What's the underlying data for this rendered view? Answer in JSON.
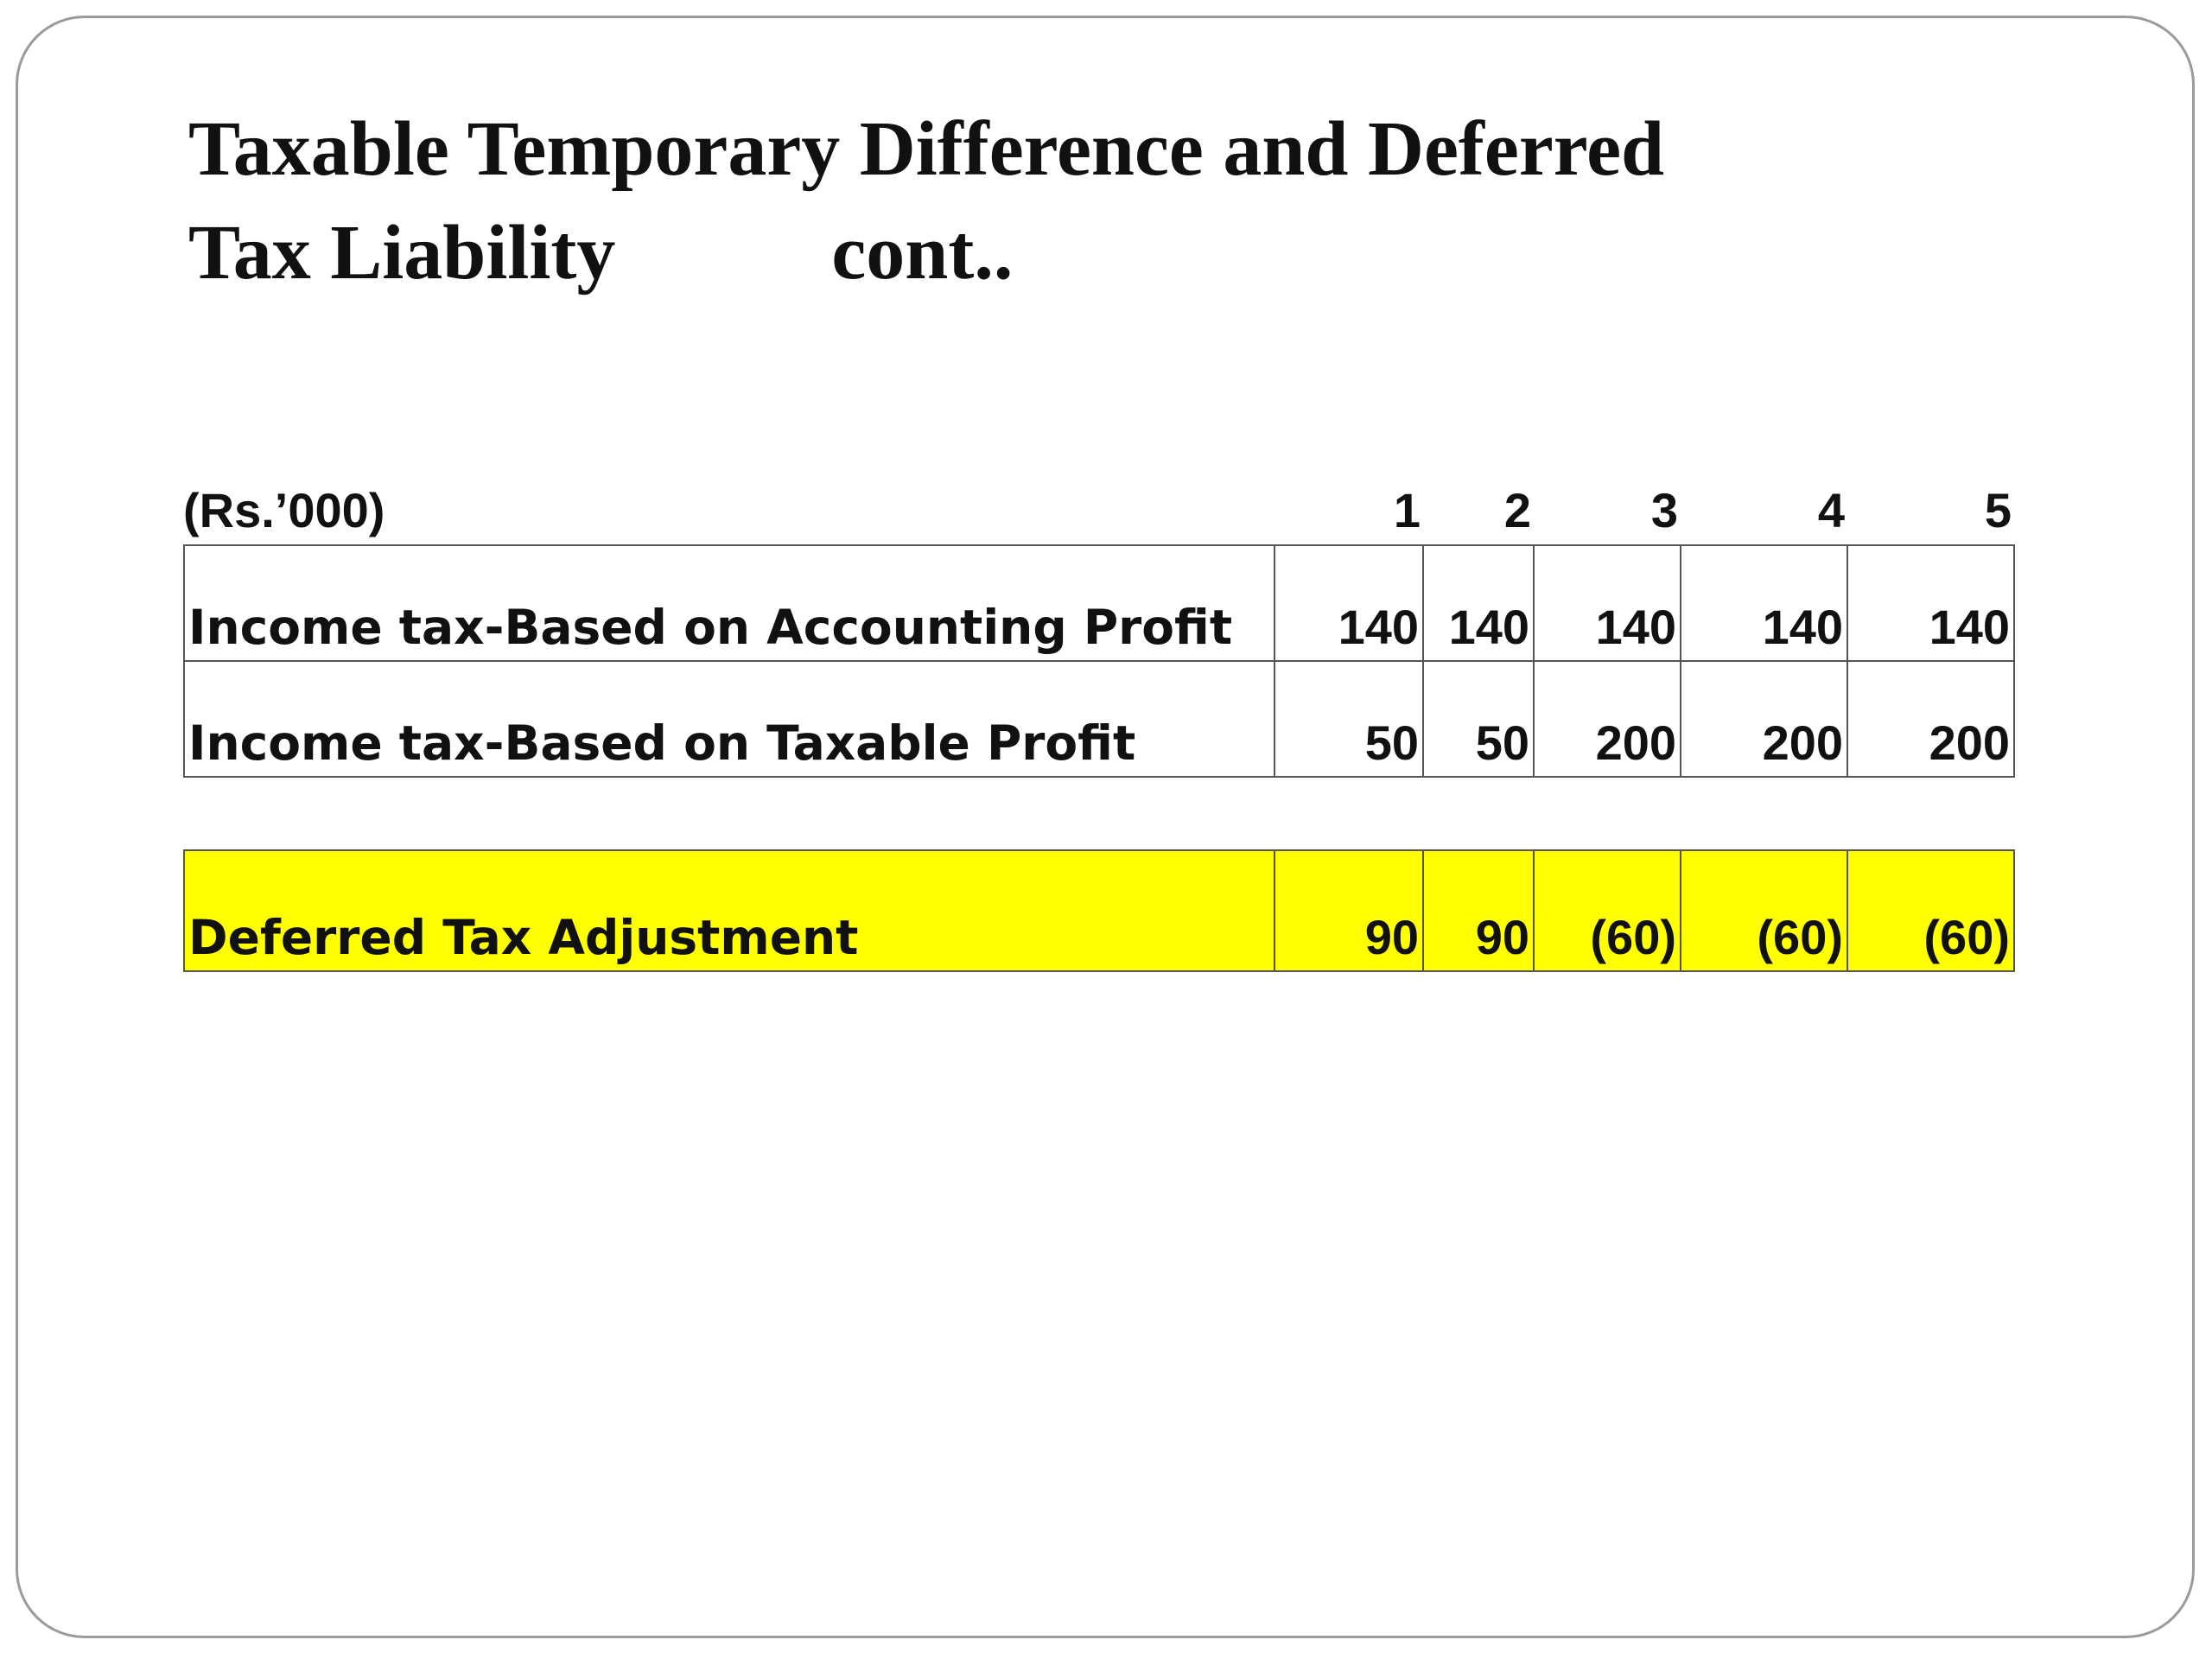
{
  "slide": {
    "title_line1": "Taxable Temporary Difference and Deferred",
    "title_line2_main": "Tax Liability",
    "title_line2_suffix": "cont.."
  },
  "table": {
    "units_label": "(Rs.’000)",
    "columns": [
      "1",
      "2",
      "3",
      "4",
      "5"
    ],
    "rows": [
      {
        "label": "Income tax-Based on Accounting Profit",
        "values": [
          "140",
          "140",
          "140",
          "140",
          "140"
        ]
      },
      {
        "label": "Income tax-Based on Taxable Profit",
        "values": [
          "50",
          "50",
          "200",
          "200",
          "200"
        ]
      }
    ],
    "adjustment": {
      "label": "Deferred Tax Adjustment",
      "values": [
        "90",
        "90",
        "(60)",
        "(60)",
        "(60)"
      ],
      "highlight_color": "#ffff00"
    }
  }
}
